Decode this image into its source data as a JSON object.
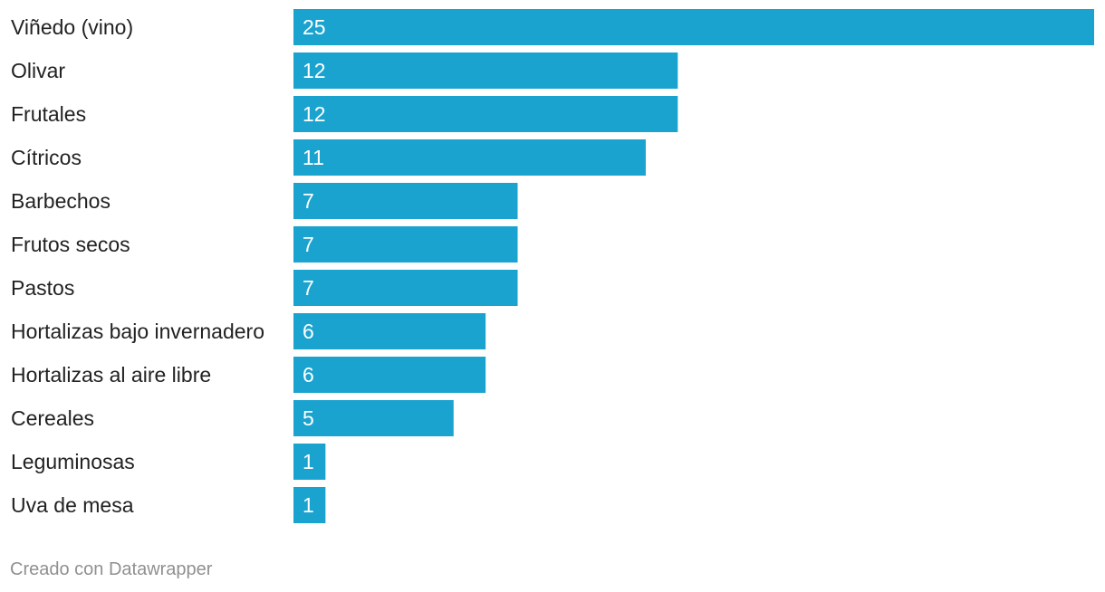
{
  "chart_data": {
    "type": "bar",
    "orientation": "horizontal",
    "categories": [
      "Viñedo (vino)",
      "Olivar",
      "Frutales",
      "Cítricos",
      "Barbechos",
      "Frutos secos",
      "Pastos",
      "Hortalizas bajo invernadero",
      "Hortalizas al aire libre",
      "Cereales",
      "Leguminosas",
      "Uva de mesa"
    ],
    "values": [
      25,
      12,
      12,
      11,
      7,
      7,
      7,
      6,
      6,
      5,
      1,
      1
    ],
    "xlim": [
      0,
      25
    ],
    "data_labels": "inside-bar",
    "grid": false,
    "legend": "none",
    "bar_color": "#1ba3cf"
  },
  "footer": {
    "credit": "Creado con Datawrapper"
  }
}
